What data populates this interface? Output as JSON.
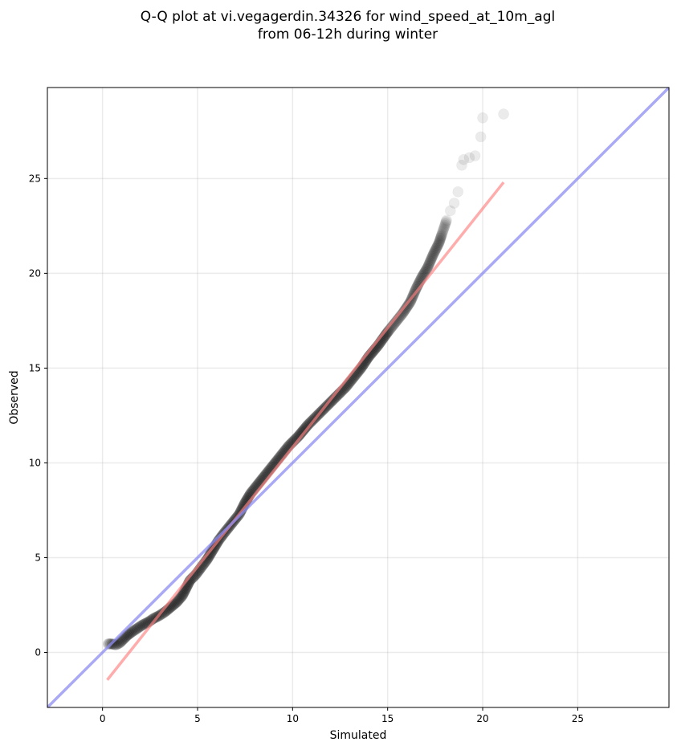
{
  "chart_data": {
    "type": "scatter",
    "title": [
      "Q-Q plot at vi.vegagerdin.34326 for wind_speed_at_10m_agl",
      "from 06-12h during winter"
    ],
    "xlabel": "Simulated",
    "ylabel": "Observed",
    "xlim": [
      -2.9,
      29.8
    ],
    "ylim": [
      -2.9,
      29.8
    ],
    "xticks": [
      0,
      5,
      10,
      15,
      20,
      25
    ],
    "yticks": [
      0,
      5,
      10,
      15,
      20,
      25
    ],
    "xtick_labels": [
      "0",
      "5",
      "10",
      "15",
      "20",
      "25"
    ],
    "ytick_labels": [
      "0",
      "5",
      "10",
      "15",
      "20",
      "25"
    ],
    "grid": true,
    "series": [
      {
        "kind": "quantile_points",
        "color": "#000000",
        "points": [
          [
            0.3,
            0.45
          ],
          [
            0.5,
            0.45
          ],
          [
            0.7,
            0.4
          ],
          [
            0.9,
            0.5
          ],
          [
            1.1,
            0.7
          ],
          [
            1.3,
            0.9
          ],
          [
            1.5,
            1.05
          ],
          [
            1.8,
            1.25
          ],
          [
            2.1,
            1.45
          ],
          [
            2.4,
            1.6
          ],
          [
            2.7,
            1.8
          ],
          [
            3.0,
            1.95
          ],
          [
            3.3,
            2.15
          ],
          [
            3.6,
            2.4
          ],
          [
            3.9,
            2.65
          ],
          [
            4.2,
            3.0
          ],
          [
            4.4,
            3.4
          ],
          [
            4.6,
            3.8
          ],
          [
            4.9,
            4.1
          ],
          [
            5.2,
            4.5
          ],
          [
            5.5,
            4.9
          ],
          [
            5.8,
            5.4
          ],
          [
            6.1,
            5.9
          ],
          [
            6.4,
            6.3
          ],
          [
            6.8,
            6.8
          ],
          [
            7.2,
            7.3
          ],
          [
            7.5,
            7.9
          ],
          [
            7.8,
            8.4
          ],
          [
            8.2,
            8.9
          ],
          [
            8.6,
            9.4
          ],
          [
            9.0,
            9.9
          ],
          [
            9.4,
            10.4
          ],
          [
            9.8,
            10.9
          ],
          [
            10.3,
            11.4
          ],
          [
            10.8,
            12.0
          ],
          [
            11.3,
            12.5
          ],
          [
            11.8,
            13.0
          ],
          [
            12.3,
            13.5
          ],
          [
            12.8,
            14.0
          ],
          [
            13.2,
            14.5
          ],
          [
            13.6,
            15.0
          ],
          [
            14.0,
            15.6
          ],
          [
            14.5,
            16.2
          ],
          [
            15.0,
            16.9
          ],
          [
            15.4,
            17.4
          ],
          [
            15.8,
            17.9
          ],
          [
            16.2,
            18.5
          ],
          [
            16.5,
            19.2
          ],
          [
            16.8,
            19.8
          ],
          [
            17.1,
            20.3
          ],
          [
            17.4,
            21.0
          ],
          [
            17.7,
            21.6
          ],
          [
            17.9,
            22.2
          ],
          [
            18.1,
            22.8
          ],
          [
            18.3,
            23.3
          ],
          [
            18.5,
            23.7
          ],
          [
            18.7,
            24.3
          ],
          [
            18.9,
            25.7
          ],
          [
            19.0,
            26.0
          ],
          [
            19.3,
            26.1
          ],
          [
            19.6,
            26.2
          ],
          [
            19.9,
            27.2
          ],
          [
            20.0,
            28.2
          ],
          [
            21.1,
            28.4
          ]
        ]
      },
      {
        "kind": "fit_line",
        "color": "#ff8080",
        "points": [
          [
            0.25,
            -1.45
          ],
          [
            21.1,
            24.8
          ]
        ]
      },
      {
        "kind": "identity_line",
        "color": "#8c8cf2",
        "points": [
          [
            -2.9,
            -2.9
          ],
          [
            29.8,
            29.8
          ]
        ]
      }
    ]
  }
}
